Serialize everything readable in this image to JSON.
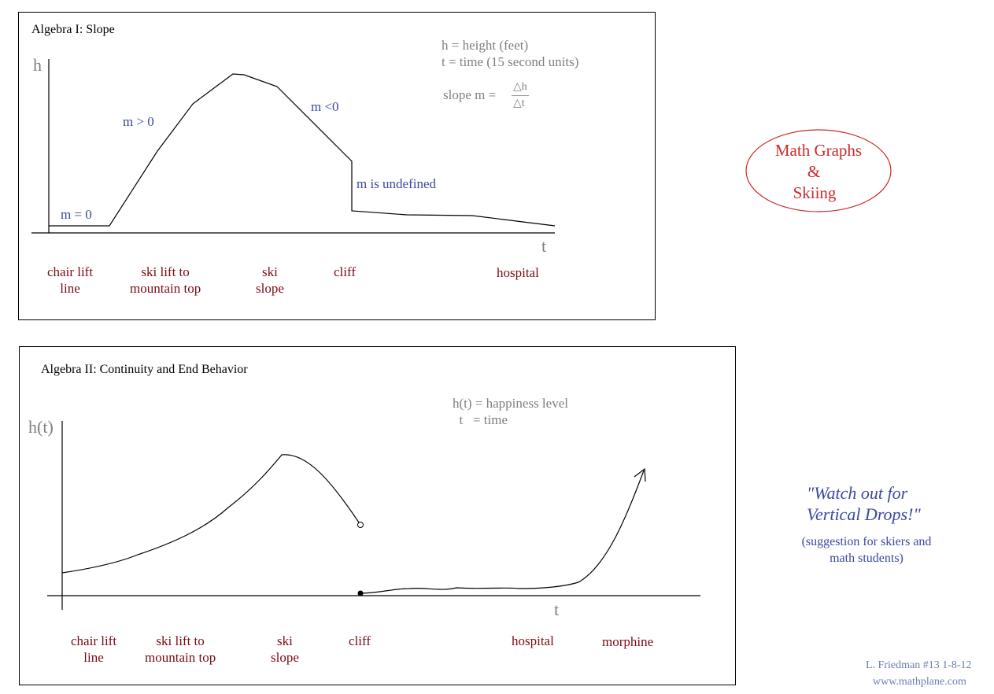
{
  "colors": {
    "annotation": "#3b48a0",
    "label": "#7a0a14",
    "title_red": "#cc2a2a",
    "gray": "#7f7f7f"
  },
  "panel1": {
    "title": "Algebra I: Slope",
    "y_axis": "h",
    "x_axis": "t",
    "legend": [
      "h = height  (feet)",
      "t  = time  (15 second units)"
    ],
    "slope_prefix": "slope m = ",
    "slope_num": "△h",
    "slope_den": "△t",
    "annotations": {
      "zero": "m = 0",
      "positive": "m > 0",
      "negative": "m <0",
      "undefined": "m is undefined"
    },
    "labels": [
      "chair lift\nline",
      "ski lift to\nmountain top",
      "ski\nslope",
      "cliff",
      "hospital"
    ]
  },
  "panel2": {
    "title": "Algebra II: Continuity and End Behavior",
    "y_axis": "h(t)",
    "x_axis": "t",
    "legend": [
      "h(t) = happiness level",
      "  t   = time"
    ],
    "labels": [
      "chair lift\nline",
      "ski lift to\nmountain top",
      "ski\nslope",
      "cliff",
      "hospital",
      "morphine"
    ]
  },
  "badge": {
    "line1": "Math Graphs",
    "line2": "&",
    "line3": "Skiing"
  },
  "quote": {
    "line1": "\"Watch out for",
    "line2": "Vertical Drops!\"",
    "note1": "(suggestion for skiers and",
    "note2": "math students)"
  },
  "footer": {
    "credit": "L. Friedman #13  1-8-12",
    "site": "www.mathplane.com"
  }
}
